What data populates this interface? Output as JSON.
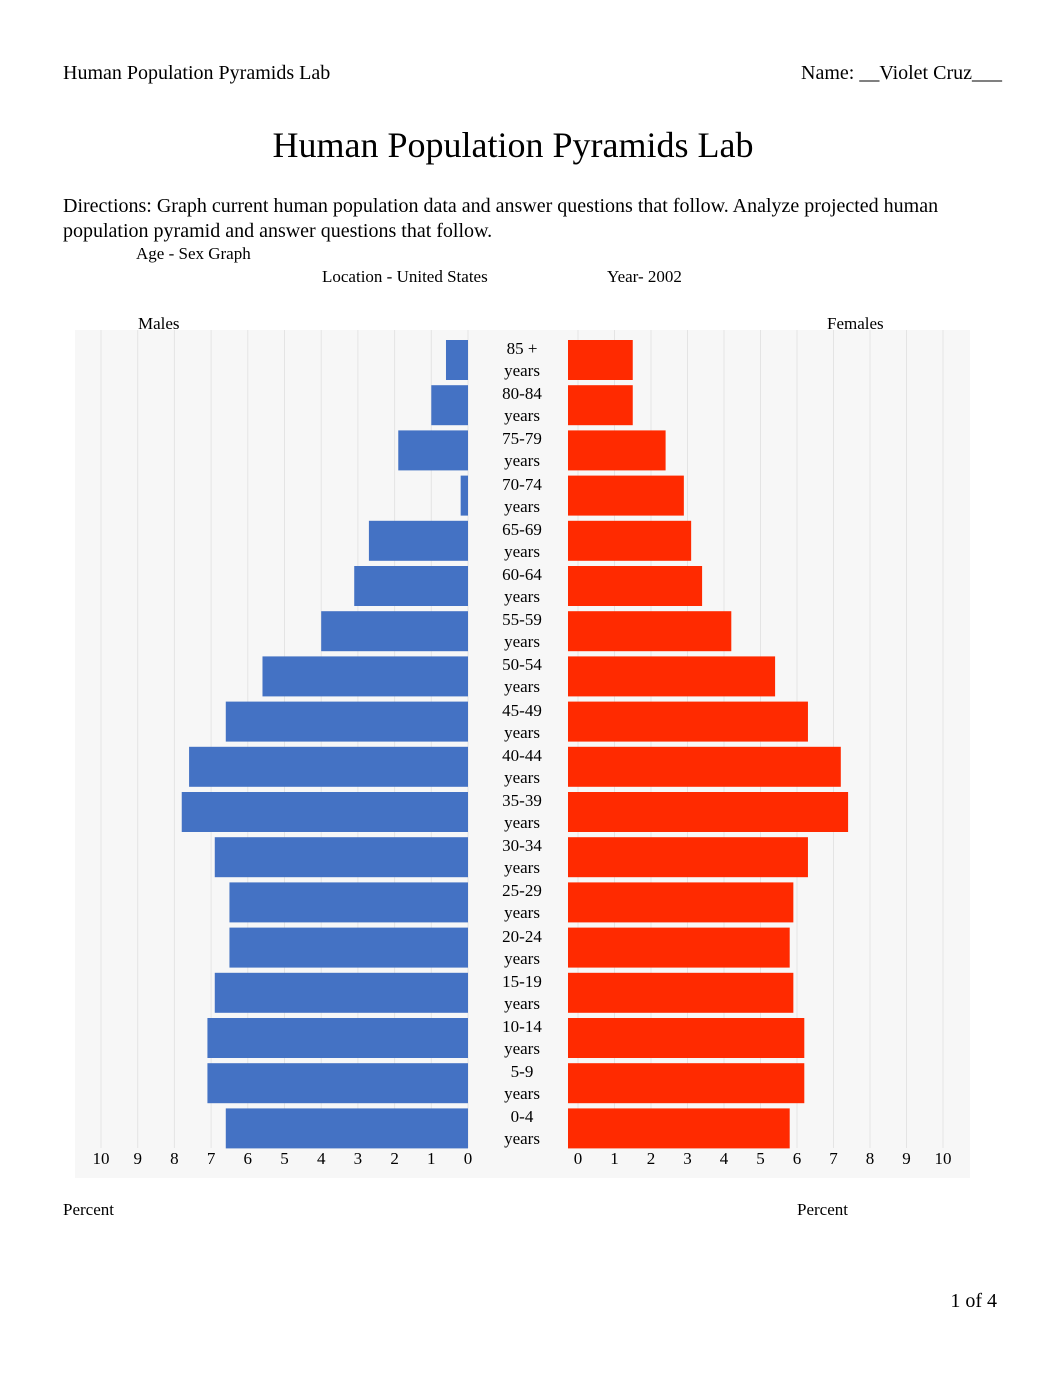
{
  "header": {
    "left": "Human Population Pyramids Lab",
    "right": "Name: __Violet Cruz___"
  },
  "title": "Human Population Pyramids Lab",
  "directions": "Directions:  Graph current human population data and answer questions that follow. Analyze projected human population pyramid and answer questions that follow.",
  "chart_data": {
    "type": "pyramid",
    "title": "Age - Sex Graph",
    "location": "Location - United States",
    "year": "Year- 2002",
    "categories": [
      "85 + years",
      "80-84 years",
      "75-79 years",
      "70-74 years",
      "65-69 years",
      "60-64 years",
      "55-59 years",
      "50-54 years",
      "45-49 years",
      "40-44 years",
      "35-39 years",
      "30-34 years",
      "25-29 years",
      "20-24 years",
      "15-19 years",
      "10-14 years",
      "5-9 years",
      "0-4 years"
    ],
    "series": [
      {
        "name": "Males",
        "color": "#4472c4",
        "values": [
          0.6,
          1.0,
          1.9,
          0.2,
          2.7,
          3.1,
          4.0,
          5.6,
          6.6,
          7.6,
          7.8,
          6.9,
          6.5,
          6.5,
          6.9,
          7.1,
          7.1,
          6.6
        ]
      },
      {
        "name": "Females",
        "color": "#ff2a00",
        "values": [
          1.5,
          1.5,
          2.4,
          2.9,
          3.1,
          3.4,
          4.2,
          5.4,
          6.3,
          7.2,
          7.4,
          6.3,
          5.9,
          5.8,
          5.9,
          6.2,
          6.2,
          5.8
        ]
      }
    ],
    "xlim": [
      0,
      10
    ],
    "xticks": [
      0,
      1,
      2,
      3,
      4,
      5,
      6,
      7,
      8,
      9,
      10
    ],
    "xlabel": "Percent",
    "grid": true
  },
  "footer": "1 of 4"
}
